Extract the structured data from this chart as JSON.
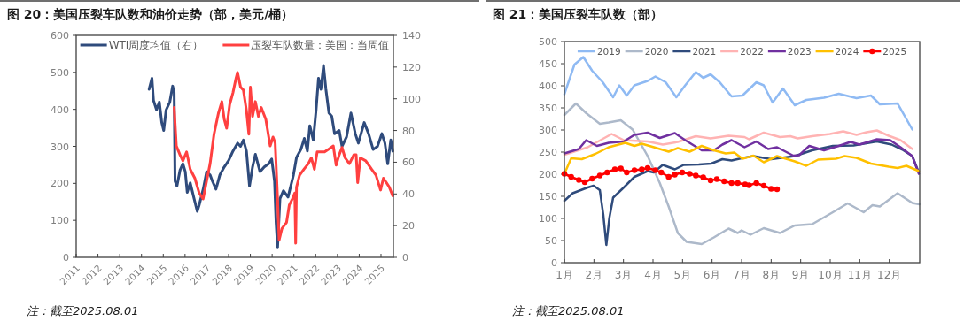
{
  "chart_data": [
    {
      "type": "line",
      "title": "图 20：美国压裂车队数和油价走势（部，美元/桶）",
      "xlim": [
        2011,
        2025.57
      ],
      "xticks": [
        2011,
        2012,
        2013,
        2014,
        2015,
        2016,
        2017,
        2018,
        2019,
        2020,
        2021,
        2022,
        2023,
        2024,
        2025
      ],
      "ylim": [
        0,
        600
      ],
      "yticks": [
        0,
        100,
        200,
        300,
        400,
        500,
        600
      ],
      "y2lim": [
        0,
        140
      ],
      "y2ticks": [
        0,
        20,
        40,
        60,
        80,
        100,
        120,
        140
      ],
      "legend": "top",
      "annotations": [
        "注：截至2025.08.01"
      ],
      "series": [
        {
          "name": "WTI周度均值（右）",
          "color": "#2f4b7c",
          "axis": "y2",
          "x": [
            2014.35,
            2014.48,
            2014.55,
            2014.69,
            2014.82,
            2014.93,
            2015.02,
            2015.13,
            2015.3,
            2015.43,
            2015.5,
            2015.54,
            2015.63,
            2015.77,
            2015.9,
            2016.01,
            2016.1,
            2016.24,
            2016.38,
            2016.56,
            2016.65,
            2016.85,
            2016.99,
            2017.15,
            2017.26,
            2017.42,
            2017.6,
            2017.8,
            2018.0,
            2018.2,
            2018.41,
            2018.55,
            2018.68,
            2018.82,
            2018.96,
            2019.1,
            2019.23,
            2019.44,
            2019.64,
            2019.84,
            2019.98,
            2020.11,
            2020.18,
            2020.25,
            2020.36,
            2020.52,
            2020.73,
            2020.98,
            2021.12,
            2021.32,
            2021.48,
            2021.62,
            2021.73,
            2021.89,
            2022.02,
            2022.13,
            2022.24,
            2022.36,
            2022.47,
            2022.61,
            2022.74,
            2022.87,
            2023.08,
            2023.21,
            2023.42,
            2023.62,
            2023.82,
            2023.96,
            2024.23,
            2024.43,
            2024.64,
            2024.84,
            2025.04,
            2025.18,
            2025.31,
            2025.45,
            2025.54
          ],
          "values": [
            106,
            113,
            99,
            93,
            98,
            85,
            80,
            93,
            98,
            108,
            104,
            48,
            45,
            55,
            59,
            54,
            41,
            47,
            39,
            29,
            33,
            44,
            54,
            52,
            48,
            43,
            52,
            57,
            61,
            67,
            72,
            70,
            74,
            67,
            45,
            57,
            65,
            54,
            57,
            59,
            62,
            48,
            22,
            6,
            37,
            42,
            38,
            52,
            63,
            68,
            75,
            67,
            83,
            74,
            93,
            113,
            106,
            121,
            106,
            91,
            89,
            78,
            80,
            70,
            76,
            91,
            78,
            72,
            85,
            78,
            68,
            70,
            78,
            72,
            59,
            74,
            67
          ]
        },
        {
          "name": "压裂车队数量：美国：当周值",
          "color": "#ff4040",
          "x": [
            2015.5,
            2015.6,
            2015.77,
            2015.9,
            2016.07,
            2016.24,
            2016.45,
            2016.65,
            2016.83,
            2016.99,
            2017.15,
            2017.33,
            2017.53,
            2017.69,
            2017.8,
            2017.91,
            2018.05,
            2018.2,
            2018.34,
            2018.41,
            2018.55,
            2018.68,
            2018.82,
            2018.93,
            2019.0,
            2019.1,
            2019.23,
            2019.37,
            2019.5,
            2019.71,
            2019.91,
            2020.04,
            2020.14,
            2020.25,
            2020.32,
            2020.45,
            2020.66,
            2020.79,
            2020.93,
            2021.04,
            2021.08,
            2021.12,
            2021.26,
            2021.46,
            2021.66,
            2021.8,
            2021.94,
            2022.07,
            2022.41,
            2022.61,
            2022.81,
            2022.94,
            2023.08,
            2023.21,
            2023.35,
            2023.55,
            2023.75,
            2023.86,
            2023.93,
            2024.05,
            2024.3,
            2024.57,
            2024.77,
            2024.98,
            2025.11,
            2025.25,
            2025.38,
            2025.54
          ],
          "values": [
            405,
            301,
            277,
            261,
            285,
            238,
            214,
            174,
            158,
            206,
            253,
            333,
            389,
            421,
            373,
            349,
            413,
            445,
            484,
            500,
            460,
            452,
            397,
            333,
            460,
            381,
            421,
            381,
            405,
            373,
            301,
            325,
            309,
            158,
            46,
            78,
            94,
            142,
            158,
            174,
            38,
            190,
            222,
            238,
            253,
            269,
            238,
            285,
            285,
            293,
            301,
            249,
            277,
            297,
            269,
            253,
            277,
            277,
            202,
            269,
            261,
            238,
            222,
            182,
            214,
            202,
            190,
            166
          ]
        }
      ]
    },
    {
      "type": "line",
      "title": "图 21：美国压裂车队数（部）",
      "xlim": [
        1,
        13.03
      ],
      "xticks": [
        {
          "value": 1,
          "label": "1月"
        },
        {
          "value": 2,
          "label": "2月"
        },
        {
          "value": 3,
          "label": "3月"
        },
        {
          "value": 4,
          "label": "4月"
        },
        {
          "value": 5,
          "label": "5月"
        },
        {
          "value": 6,
          "label": "6月"
        },
        {
          "value": 7,
          "label": "7月"
        },
        {
          "value": 8,
          "label": "8月"
        },
        {
          "value": 9,
          "label": "9月"
        },
        {
          "value": 10,
          "label": "10月"
        },
        {
          "value": 11,
          "label": "11月"
        },
        {
          "value": 12,
          "label": "12月"
        }
      ],
      "ylim": [
        0,
        500
      ],
      "yticks": [
        0,
        50,
        100,
        150,
        200,
        250,
        300,
        350,
        400,
        450,
        500
      ],
      "legend": "top",
      "annotations": [
        "注：截至2025.08.01"
      ],
      "series": [
        {
          "name": "2019",
          "color": "#8fbaf3",
          "x": [
            1,
            1.34,
            1.64,
            1.94,
            2.3,
            2.65,
            2.86,
            3.11,
            3.37,
            3.82,
            4.08,
            4.43,
            4.79,
            5.09,
            5.45,
            5.7,
            5.95,
            6.26,
            6.66,
            7.03,
            7.5,
            7.75,
            8.05,
            8.4,
            8.8,
            9.19,
            9.79,
            10.29,
            10.89,
            11.38,
            11.68,
            12.28,
            12.78
          ],
          "values": [
            381,
            448,
            465,
            434,
            408,
            374,
            401,
            378,
            401,
            411,
            421,
            408,
            374,
            401,
            431,
            418,
            426,
            408,
            376,
            378,
            408,
            401,
            362,
            394,
            356,
            368,
            373,
            382,
            372,
            378,
            358,
            360,
            301
          ]
        },
        {
          "name": "2020",
          "color": "#adb9ca",
          "x": [
            1,
            1.39,
            1.74,
            2.2,
            2.5,
            2.91,
            3.31,
            3.82,
            4.23,
            4.53,
            4.84,
            5.14,
            5.65,
            6.06,
            6.56,
            6.87,
            7.0,
            7.3,
            7.75,
            8.3,
            8.8,
            9.39,
            10.09,
            10.59,
            11.13,
            11.43,
            11.68,
            12.28,
            12.78,
            13.02
          ],
          "values": [
            334,
            360,
            338,
            314,
            317,
            322,
            301,
            241,
            180,
            127,
            67,
            47,
            42,
            57,
            77,
            67,
            73,
            63,
            78,
            67,
            84,
            87,
            114,
            134,
            114,
            130,
            127,
            157,
            135,
            132
          ]
        },
        {
          "name": "2021",
          "color": "#2f4b7c",
          "x": [
            1,
            1.28,
            1.79,
            1.99,
            2.2,
            2.32,
            2.42,
            2.52,
            2.65,
            3.01,
            3.37,
            3.82,
            4.02,
            4.33,
            4.74,
            5.04,
            5.55,
            5.97,
            6.35,
            6.66,
            7.06,
            7.4,
            8.0,
            8.8,
            9.39,
            10.09,
            10.79,
            11.58,
            12.08,
            12.48,
            12.78,
            12.98
          ],
          "values": [
            140,
            157,
            170,
            174,
            164,
            107,
            40,
            100,
            147,
            170,
            194,
            207,
            204,
            221,
            211,
            221,
            222,
            224,
            234,
            231,
            237,
            241,
            234,
            241,
            254,
            264,
            265,
            274,
            267,
            254,
            241,
            207
          ]
        },
        {
          "name": "2022",
          "color": "#ffb3b3",
          "x": [
            1,
            1.79,
            2.6,
            3.01,
            3.82,
            4.33,
            4.84,
            5.45,
            5.95,
            6.56,
            7.1,
            7.25,
            7.75,
            8.3,
            8.65,
            8.9,
            9.39,
            9.99,
            10.44,
            10.89,
            11.23,
            11.58,
            11.98,
            12.38,
            12.78
          ],
          "values": [
            244,
            261,
            291,
            277,
            274,
            267,
            273,
            286,
            281,
            287,
            284,
            279,
            294,
            284,
            286,
            281,
            286,
            291,
            297,
            289,
            295,
            299,
            287,
            277,
            257
          ]
        },
        {
          "name": "2023",
          "color": "#7030a0",
          "x": [
            1,
            1.49,
            1.74,
            2.1,
            2.5,
            3.01,
            3.37,
            3.82,
            4.23,
            4.74,
            5.09,
            5.65,
            6.06,
            6.35,
            6.66,
            7.1,
            7.5,
            7.9,
            8.2,
            8.75,
            8.95,
            9.29,
            9.79,
            10.29,
            10.69,
            10.99,
            11.58,
            12.03,
            12.38,
            12.78,
            13.0
          ],
          "values": [
            247,
            257,
            277,
            264,
            271,
            274,
            289,
            294,
            282,
            293,
            277,
            254,
            254,
            267,
            277,
            261,
            274,
            257,
            261,
            242,
            243,
            264,
            254,
            264,
            273,
            267,
            279,
            277,
            261,
            241,
            201
          ]
        },
        {
          "name": "2024",
          "color": "#ffc000",
          "x": [
            1,
            1.23,
            1.59,
            2.05,
            2.5,
            3.06,
            3.37,
            3.62,
            4.03,
            4.53,
            4.84,
            5.24,
            5.65,
            6.06,
            6.46,
            6.75,
            7.03,
            7.4,
            7.75,
            8.2,
            8.8,
            9.19,
            9.59,
            10.19,
            10.49,
            10.89,
            11.38,
            11.98,
            12.28,
            12.58,
            13.0
          ],
          "values": [
            201,
            236,
            234,
            246,
            261,
            271,
            264,
            269,
            261,
            251,
            259,
            251,
            264,
            254,
            247,
            249,
            235,
            242,
            227,
            241,
            229,
            219,
            233,
            235,
            241,
            237,
            224,
            217,
            214,
            219,
            207
          ]
        },
        {
          "name": "2025",
          "color": "#ff0000",
          "marker": "circle",
          "x": [
            1,
            1.23,
            1.49,
            1.69,
            1.94,
            2.2,
            2.45,
            2.71,
            2.91,
            3.11,
            3.37,
            3.62,
            3.82,
            4.08,
            4.28,
            4.53,
            4.74,
            4.99,
            5.24,
            5.45,
            5.7,
            5.95,
            6.16,
            6.41,
            6.66,
            6.87,
            7.12,
            7.25,
            7.5,
            7.75,
            8.0,
            8.2
          ],
          "values": [
            201,
            194,
            187,
            182,
            190,
            197,
            204,
            211,
            213,
            204,
            209,
            211,
            214,
            209,
            204,
            194,
            199,
            204,
            201,
            197,
            193,
            186,
            189,
            184,
            180,
            180,
            177,
            175,
            180,
            174,
            167,
            166
          ]
        }
      ]
    }
  ]
}
